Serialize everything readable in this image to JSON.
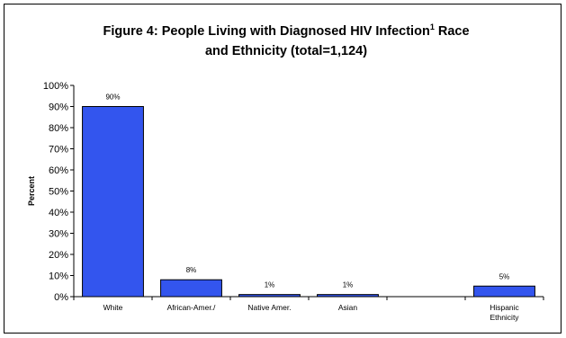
{
  "chart_data": {
    "type": "bar",
    "title_line1": "Figure 4: People Living with Diagnosed HIV Infection",
    "title_sup": "1",
    "title_line1_tail": " Race",
    "title_line2": "and Ethnicity (total=1,124)",
    "xlabel": "",
    "ylabel": "Percent",
    "ylim": [
      0,
      100
    ],
    "y_ticks": [
      "0%",
      "10%",
      "20%",
      "30%",
      "40%",
      "50%",
      "60%",
      "70%",
      "80%",
      "90%",
      "100%"
    ],
    "categories": [
      [
        "White"
      ],
      [
        "African-Amer./"
      ],
      [
        "Native Amer."
      ],
      [
        "Asian"
      ],
      [
        ""
      ],
      [
        "Hispanic",
        "Ethnicity"
      ]
    ],
    "values": [
      90,
      8,
      1,
      1,
      null,
      5
    ],
    "data_labels": [
      "90%",
      "8%",
      "1%",
      "1%",
      "",
      "5%"
    ],
    "bar_color": "#3355EE",
    "grid": false,
    "legend": "none"
  }
}
